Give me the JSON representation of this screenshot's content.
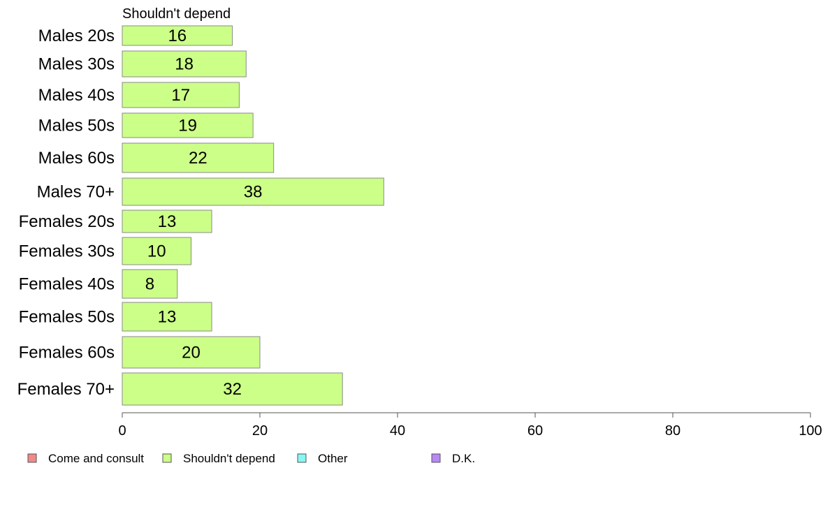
{
  "chart_data": {
    "type": "bar",
    "orientation": "horizontal",
    "categories": [
      "Males 20s",
      "Males 30s",
      "Males 40s",
      "Males 50s",
      "Males 60s",
      "Males 70+",
      "Females 20s",
      "Females 30s",
      "Females 40s",
      "Females 50s",
      "Females 60s",
      "Females 70+"
    ],
    "series": [
      {
        "name": "Shouldn't depend",
        "values": [
          16,
          18,
          17,
          19,
          22,
          38,
          13,
          10,
          8,
          13,
          20,
          32
        ],
        "color": "#ccff88"
      }
    ],
    "header_label": "Shouldn't depend",
    "xlim": [
      0,
      100
    ],
    "xticks": [
      0,
      20,
      40,
      60,
      80,
      100
    ],
    "grid": false,
    "legend_position": "bottom",
    "legend": [
      {
        "label": "Come and consult",
        "color": "#f08a8a"
      },
      {
        "label": "Shouldn't depend",
        "color": "#ccff88"
      },
      {
        "label": "Other",
        "color": "#88f5f5"
      },
      {
        "label": "D.K.",
        "color": "#b888f5"
      }
    ]
  }
}
